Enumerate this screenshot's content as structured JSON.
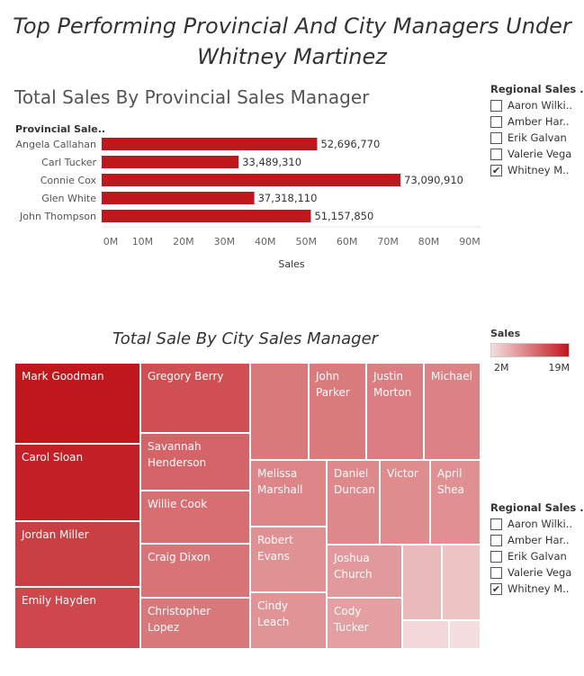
{
  "title_line1": "Top Performing Provincial And City Managers Under",
  "title_line2": "Whitney Martinez",
  "chart_data": [
    {
      "type": "bar",
      "orientation": "horizontal",
      "title": "Total Sales By Provincial Sales Manager",
      "row_header": "Provincial Sale..",
      "xlabel": "Sales",
      "categories": [
        "Angela Callahan",
        "Carl Tucker",
        "Connie Cox",
        "Glen White",
        "John Thompson"
      ],
      "values": [
        52696770,
        33489310,
        73090910,
        37318110,
        51157850
      ],
      "value_labels": [
        "52,696,770",
        "33,489,310",
        "73,090,910",
        "37,318,110",
        "51,157,850"
      ],
      "xlim": [
        0,
        90000000
      ],
      "ticks": [
        0,
        10000000,
        20000000,
        30000000,
        40000000,
        50000000,
        60000000,
        70000000,
        80000000,
        90000000
      ],
      "tick_labels": [
        "0M",
        "10M",
        "20M",
        "30M",
        "40M",
        "50M",
        "60M",
        "70M",
        "80M",
        "90M"
      ],
      "bar_color": "#c0171d"
    },
    {
      "type": "treemap",
      "title": "Total Sale By City Sales Manager",
      "color_legend": {
        "title": "Sales",
        "min_label": "2M",
        "max_label": "19M",
        "min": 2000000,
        "max": 19000000,
        "color_low": "#f4dede",
        "color_high": "#c0171d"
      },
      "tiles": [
        {
          "name": "Mark Goodman",
          "value": 19000000
        },
        {
          "name": "Carol Sloan",
          "value": 18200000
        },
        {
          "name": "Jordan Miller",
          "value": 15600000
        },
        {
          "name": "Emily Hayden",
          "value": 14900000
        },
        {
          "name": "Gregory Berry",
          "value": 14200000
        },
        {
          "name": "Savannah Henderson",
          "value": 12400000
        },
        {
          "name": "Willie Cook",
          "value": 11600000
        },
        {
          "name": "Craig Dixon",
          "value": 11100000
        },
        {
          "name": "Christopher Lopez",
          "value": 10700000
        },
        {
          "name": "",
          "value": 10600000
        },
        {
          "name": "John Parker",
          "value": 10500000
        },
        {
          "name": "Justin Morton",
          "value": 10200000
        },
        {
          "name": "Michael",
          "value": 9900000
        },
        {
          "name": "Melissa Marshall",
          "value": 9600000
        },
        {
          "name": "Daniel Duncan",
          "value": 9300000
        },
        {
          "name": "Victor",
          "value": 9000000
        },
        {
          "name": "April Shea",
          "value": 8700000
        },
        {
          "name": "Robert Evans",
          "value": 8600000
        },
        {
          "name": "Cindy Leach",
          "value": 8300000
        },
        {
          "name": "Joshua Church",
          "value": 7900000
        },
        {
          "name": "Cody Tucker",
          "value": 7400000
        },
        {
          "name": "",
          "value": 5200000
        },
        {
          "name": "",
          "value": 4300000
        },
        {
          "name": "",
          "value": 2500000
        },
        {
          "name": "",
          "value": 2000000
        }
      ]
    }
  ],
  "filters": [
    {
      "title": "Regional Sales ..",
      "items": [
        {
          "label": "Aaron Wilki..",
          "checked": false
        },
        {
          "label": "Amber Har..",
          "checked": false
        },
        {
          "label": "Erik Galvan",
          "checked": false
        },
        {
          "label": "Valerie Vega",
          "checked": false
        },
        {
          "label": "Whitney M..",
          "checked": true
        }
      ]
    },
    {
      "title": "Regional Sales ..",
      "items": [
        {
          "label": "Aaron Wilki..",
          "checked": false
        },
        {
          "label": "Amber Har..",
          "checked": false
        },
        {
          "label": "Erik Galvan",
          "checked": false
        },
        {
          "label": "Valerie Vega",
          "checked": false
        },
        {
          "label": "Whitney M..",
          "checked": true
        }
      ]
    }
  ],
  "check_glyph": "✔"
}
